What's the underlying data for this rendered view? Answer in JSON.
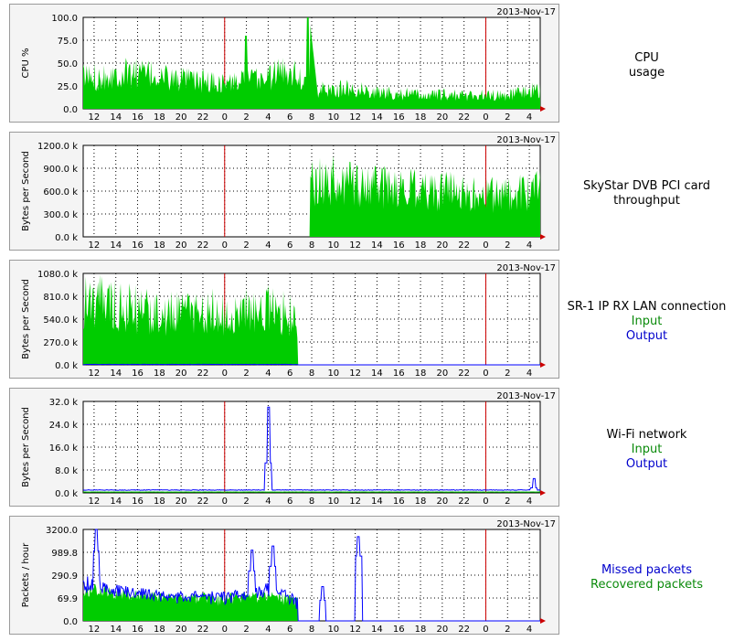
{
  "date_stamp": "2013-Nov-17",
  "x_ticks": [
    "12",
    "14",
    "16",
    "18",
    "20",
    "22",
    "0",
    "2",
    "4",
    "6",
    "8",
    "10",
    "12",
    "14",
    "16",
    "18",
    "20",
    "22",
    "0",
    "2",
    "4"
  ],
  "colors": {
    "input": "#00cc00",
    "output": "#0000ff",
    "day_boundary": "#cc0000",
    "plot_bg": "#ffffff",
    "grid": "#000000"
  },
  "panels": [
    {
      "id": "cpu",
      "ylabel": "CPU %",
      "yticks": [
        "0.0",
        "25.0",
        "50.0",
        "75.0",
        "100.0"
      ],
      "caption": [
        "CPU",
        "usage"
      ],
      "in_label": "",
      "out_label": ""
    },
    {
      "id": "skystar",
      "ylabel": "Bytes per Second",
      "yticks": [
        "0.0 k",
        "300.0 k",
        "600.0 k",
        "900.0 k",
        "1200.0 k"
      ],
      "caption": [
        "SkyStar DVB PCI card",
        "throughput"
      ],
      "in_label": "",
      "out_label": ""
    },
    {
      "id": "sr1",
      "ylabel": "Bytes per Second",
      "yticks": [
        "0.0 k",
        "270.0 k",
        "540.0 k",
        "810.0 k",
        "1080.0 k"
      ],
      "caption": [
        "SR-1 IP RX LAN connection"
      ],
      "in_label": "Input",
      "out_label": "Output"
    },
    {
      "id": "wifi",
      "ylabel": "Bytes per Second",
      "yticks": [
        "0.0 k",
        "8.0 k",
        "16.0 k",
        "24.0 k",
        "32.0 k"
      ],
      "caption": [
        "Wi-Fi network"
      ],
      "in_label": "Input",
      "out_label": "Output"
    },
    {
      "id": "packets",
      "ylabel": "Packets / hour",
      "yticks": [
        "0.0",
        "69.9",
        "290.9",
        "989.8",
        "3200.0"
      ],
      "caption": [],
      "in_label": "Recovered packets",
      "out_label": "Missed packets"
    }
  ],
  "chart_data": [
    {
      "type": "area",
      "title": "CPU usage",
      "ylabel": "CPU %",
      "ylim": [
        0,
        100
      ],
      "x": [
        "12",
        "14",
        "16",
        "18",
        "20",
        "22",
        "0",
        "2",
        "4",
        "6",
        "8",
        "10",
        "12",
        "14",
        "16",
        "18",
        "20",
        "22",
        "0",
        "2",
        "4"
      ],
      "series": [
        {
          "name": "CPU usage",
          "values": [
            35,
            38,
            40,
            35,
            32,
            30,
            28,
            30,
            35,
            45,
            20,
            22,
            22,
            18,
            17,
            15,
            15,
            15,
            15,
            15,
            20
          ],
          "peaks": {
            "2": 80,
            "7.5": 100
          }
        }
      ]
    },
    {
      "type": "area",
      "title": "SkyStar DVB PCI card throughput",
      "ylabel": "Bytes per Second",
      "ylim": [
        0,
        1200
      ],
      "x": [
        "12",
        "14",
        "16",
        "18",
        "20",
        "22",
        "0",
        "2",
        "4",
        "6",
        "8",
        "10",
        "12",
        "14",
        "16",
        "18",
        "20",
        "22",
        "0",
        "2",
        "4"
      ],
      "series": [
        {
          "name": "",
          "values": [
            0,
            0,
            0,
            0,
            0,
            0,
            0,
            0,
            0,
            0,
            700,
            750,
            700,
            650,
            650,
            600,
            600,
            600,
            550,
            550,
            600
          ]
        }
      ]
    },
    {
      "type": "area",
      "title": "SR-1 IP RX LAN connection",
      "ylabel": "Bytes per Second",
      "ylim": [
        0,
        1080
      ],
      "x": [
        "12",
        "14",
        "16",
        "18",
        "20",
        "22",
        "0",
        "2",
        "4",
        "6",
        "8",
        "10",
        "12",
        "14",
        "16",
        "18",
        "20",
        "22",
        "0",
        "2",
        "4"
      ],
      "series": [
        {
          "name": "Input",
          "values": [
            750,
            700,
            650,
            600,
            600,
            650,
            600,
            650,
            650,
            600,
            0,
            0,
            0,
            0,
            0,
            0,
            0,
            0,
            0,
            0,
            0
          ]
        },
        {
          "name": "Output",
          "values": [
            5,
            5,
            5,
            5,
            5,
            5,
            5,
            5,
            5,
            5,
            0,
            0,
            0,
            0,
            0,
            0,
            0,
            0,
            0,
            0,
            0
          ]
        }
      ]
    },
    {
      "type": "line",
      "title": "Wi-Fi network",
      "ylabel": "Bytes per Second",
      "ylim": [
        0,
        32
      ],
      "x": [
        "12",
        "14",
        "16",
        "18",
        "20",
        "22",
        "0",
        "2",
        "4",
        "6",
        "8",
        "10",
        "12",
        "14",
        "16",
        "18",
        "20",
        "22",
        "0",
        "2",
        "4"
      ],
      "series": [
        {
          "name": "Input",
          "values": [
            0.3,
            0.3,
            0.3,
            0.3,
            0.3,
            0.3,
            0.3,
            0.3,
            0.3,
            0.3,
            0.3,
            0.3,
            0.3,
            0.3,
            0.3,
            0.3,
            0.3,
            0.3,
            0.3,
            0.3,
            0.3
          ]
        },
        {
          "name": "Output",
          "values": [
            1,
            1,
            1,
            1,
            1,
            1,
            1,
            1,
            1,
            1,
            1,
            1,
            1,
            1,
            1,
            1,
            1,
            1,
            1,
            1,
            1
          ],
          "peaks": {
            "4": 30,
            "4.2": 5
          }
        }
      ]
    },
    {
      "type": "area",
      "title": "",
      "ylabel": "Packets / hour",
      "ylim": [
        0,
        3200
      ],
      "x": [
        "12",
        "14",
        "16",
        "18",
        "20",
        "22",
        "0",
        "2",
        "4",
        "6",
        "8",
        "10",
        "12",
        "14",
        "16",
        "18",
        "20",
        "22",
        "0",
        "2",
        "4"
      ],
      "series": [
        {
          "name": "Recovered packets",
          "values": [
            150,
            120,
            100,
            90,
            80,
            85,
            80,
            90,
            100,
            80,
            0,
            0,
            0,
            0,
            0,
            0,
            0,
            0,
            0,
            0,
            0
          ]
        },
        {
          "name": "Missed packets",
          "values": [
            200,
            150,
            120,
            100,
            90,
            95,
            90,
            110,
            150,
            90,
            0,
            0,
            0,
            0,
            0,
            0,
            0,
            0,
            0,
            0,
            0
          ],
          "peaks": {
            "12.2": 3200,
            "12.5": 2500,
            "9": 180,
            "2.5": 1200,
            "4.3": 1600
          }
        }
      ]
    }
  ]
}
